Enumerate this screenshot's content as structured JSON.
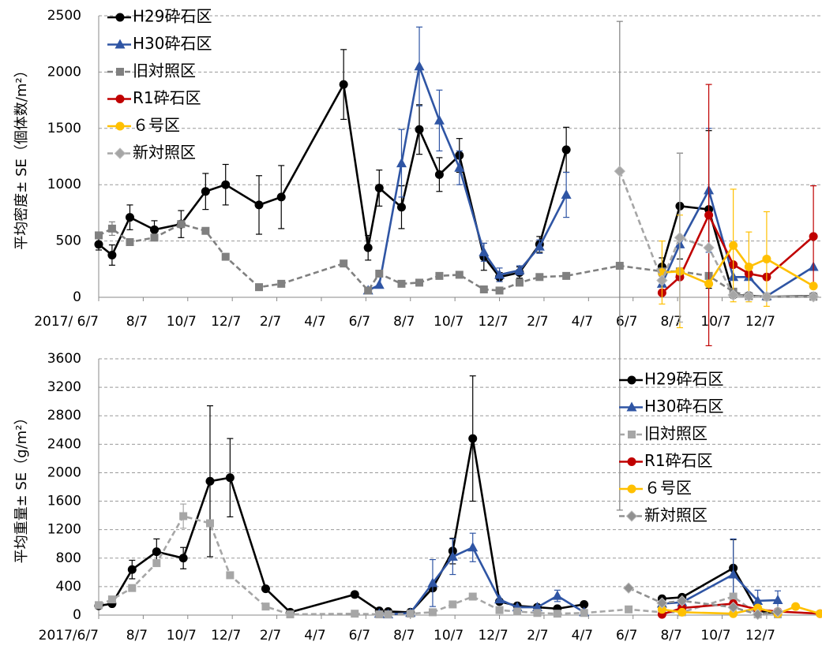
{
  "chart_data": [
    {
      "type": "line",
      "y_label": "平均密度± SE（個体数/m²）",
      "legend": "upper left",
      "grid": true,
      "ylim": [
        0,
        2500
      ],
      "yticks": [
        0,
        500,
        1000,
        1500,
        2000,
        2500
      ],
      "xlim": [
        0,
        32.45
      ],
      "xticks": [
        {
          "value": 0,
          "label": "2017/ 6/7"
        },
        {
          "value": 2,
          "label": "8/7"
        },
        {
          "value": 4,
          "label": "10/7"
        },
        {
          "value": 6,
          "label": "12/7"
        },
        {
          "value": 8,
          "label": "2/7"
        },
        {
          "value": 10,
          "label": "4/7"
        },
        {
          "value": 12,
          "label": "6/7"
        },
        {
          "value": 14,
          "label": "8/7"
        },
        {
          "value": 16,
          "label": "10/7"
        },
        {
          "value": 18,
          "label": "12/7"
        },
        {
          "value": 20,
          "label": "2/7"
        },
        {
          "value": 22,
          "label": "4/7"
        },
        {
          "value": 24,
          "label": "6/7"
        },
        {
          "value": 26,
          "label": "8/7"
        },
        {
          "value": 28,
          "label": "10/7"
        },
        {
          "value": 30,
          "label": "12/7"
        }
      ],
      "series": [
        {
          "name": "H29砕石区",
          "color": "#000000",
          "marker": "circle",
          "dash": false,
          "x": [
            0,
            0.6,
            1.4,
            2.5,
            3.7,
            4.8,
            5.7,
            7.2,
            8.2,
            11,
            12.1,
            12.6,
            13.6,
            14.4,
            15.3,
            16.2,
            17.3,
            18,
            18.9,
            19.8,
            21,
            null,
            25.3,
            26.1,
            27.4,
            28.5,
            29.2,
            30,
            32.1
          ],
          "values": [
            470,
            375,
            710,
            600,
            650,
            940,
            1000,
            820,
            890,
            1890,
            440,
            970,
            800,
            1490,
            1090,
            1260,
            360,
            180,
            220,
            470,
            1310,
            null,
            270,
            810,
            780,
            20,
            15,
            5,
            10
          ],
          "errors": [
            50,
            90,
            110,
            80,
            120,
            160,
            180,
            260,
            280,
            310,
            110,
            160,
            190,
            220,
            150,
            150,
            120,
            40,
            50,
            70,
            200,
            null,
            80,
            470,
            700,
            null,
            null,
            null,
            null
          ]
        },
        {
          "name": "H30砕石区",
          "color": "#2f55a4",
          "marker": "triangle",
          "dash": false,
          "x": [
            12.1,
            12.6,
            13.6,
            14.4,
            15.3,
            16.2,
            17.3,
            18,
            18.9,
            19.8,
            21,
            null,
            25.3,
            26.1,
            27.4,
            28.5,
            29.2,
            30,
            32.1
          ],
          "values": [
            60,
            110,
            1190,
            2050,
            1570,
            1150,
            400,
            200,
            240,
            450,
            910,
            null,
            120,
            470,
            950,
            180,
            180,
            10,
            270
          ],
          "errors": [
            null,
            null,
            300,
            350,
            270,
            150,
            80,
            60,
            40,
            60,
            200,
            null,
            null,
            null,
            550,
            null,
            null,
            null,
            null
          ]
        },
        {
          "name": "旧対照区",
          "color": "#808080",
          "marker": "square",
          "dash": true,
          "x": [
            0,
            0.6,
            1.4,
            2.5,
            3.7,
            4.8,
            5.7,
            7.2,
            8.2,
            11,
            12.1,
            12.6,
            13.6,
            14.4,
            15.3,
            16.2,
            17.3,
            18,
            18.9,
            19.8,
            21,
            23.4,
            25.3,
            26.1,
            27.4,
            28.5,
            29.2,
            30,
            32.1
          ],
          "values": [
            550,
            610,
            490,
            530,
            650,
            590,
            360,
            90,
            120,
            300,
            60,
            210,
            120,
            130,
            190,
            200,
            70,
            60,
            130,
            180,
            190,
            280,
            230,
            230,
            190,
            50,
            10,
            5,
            5
          ],
          "errors": [
            null,
            60,
            null,
            null,
            null,
            null,
            null,
            null,
            null,
            null,
            null,
            null,
            null,
            null,
            null,
            null,
            null,
            null,
            null,
            null,
            null,
            2170,
            null,
            null,
            null,
            null,
            null,
            null,
            null
          ]
        },
        {
          "name": "R1砕石区",
          "color": "#c00000",
          "marker": "circle",
          "dash": false,
          "x": [
            25.3,
            26.1,
            27.4,
            28.5,
            29.2,
            30,
            32.1
          ],
          "values": [
            40,
            180,
            730,
            290,
            210,
            180,
            540
          ],
          "errors": [
            null,
            null,
            1160,
            null,
            null,
            null,
            450
          ]
        },
        {
          "name": "６号区",
          "color": "#ffc000",
          "marker": "circle",
          "dash": false,
          "x": [
            25.3,
            26.1,
            27.4,
            28.5,
            29.2,
            30,
            32.1
          ],
          "values": [
            220,
            230,
            120,
            460,
            270,
            340,
            100
          ],
          "errors": [
            280,
            500,
            null,
            500,
            310,
            420,
            null
          ]
        },
        {
          "name": "新対照区",
          "color": "#a6a6a6",
          "marker": "diamond",
          "dash": true,
          "x": [
            23.4,
            25.3,
            26.1,
            27.4,
            28.5,
            29.2,
            30,
            32.1
          ],
          "values": [
            1120,
            150,
            530,
            440,
            20,
            10,
            5,
            5
          ],
          "errors": [
            null,
            null,
            750,
            null,
            null,
            null,
            null,
            null
          ]
        }
      ]
    },
    {
      "type": "line",
      "y_label": "平均重量± SE（g/m²）",
      "legend": "upper right",
      "grid": true,
      "ylim": [
        0,
        3600
      ],
      "yticks": [
        0,
        400,
        800,
        1200,
        1600,
        2000,
        2400,
        2800,
        3200,
        3600
      ],
      "xlim": [
        0,
        32.45
      ],
      "xticks": [
        {
          "value": 0,
          "label": "2017/6/7"
        },
        {
          "value": 2,
          "label": "8/7"
        },
        {
          "value": 4,
          "label": "10/7"
        },
        {
          "value": 6,
          "label": "12/7"
        },
        {
          "value": 8,
          "label": "2/7"
        },
        {
          "value": 10,
          "label": "4/7"
        },
        {
          "value": 12,
          "label": "6/7"
        },
        {
          "value": 14,
          "label": "8/7"
        },
        {
          "value": 16,
          "label": "10/7"
        },
        {
          "value": 18,
          "label": "12/7"
        },
        {
          "value": 20,
          "label": "2/7"
        },
        {
          "value": 22,
          "label": "4/7"
        },
        {
          "value": 24,
          "label": "6/7"
        },
        {
          "value": 26,
          "label": "8/7"
        },
        {
          "value": 28,
          "label": "10/7"
        },
        {
          "value": 30,
          "label": "12/7"
        }
      ],
      "series": [
        {
          "name": "H29砕石区",
          "color": "#000000",
          "marker": "circle",
          "dash": false,
          "x": [
            0,
            0.6,
            1.5,
            2.6,
            3.8,
            5,
            5.9,
            7.5,
            8.6,
            11.5,
            12.6,
            13,
            14,
            15,
            15.9,
            16.8,
            18,
            18.8,
            19.7,
            20.6,
            21.8,
            null,
            25.3,
            26.2,
            28.5,
            29.6,
            30.5
          ],
          "values": [
            130,
            160,
            640,
            890,
            800,
            1880,
            1930,
            370,
            40,
            290,
            60,
            50,
            40,
            380,
            900,
            2480,
            190,
            130,
            110,
            90,
            150,
            null,
            230,
            250,
            660,
            60,
            20
          ],
          "errors": [
            null,
            null,
            130,
            180,
            150,
            1060,
            550,
            null,
            null,
            null,
            null,
            null,
            null,
            null,
            180,
            880,
            null,
            null,
            null,
            null,
            null,
            null,
            null,
            null,
            400,
            null,
            null
          ]
        },
        {
          "name": "H30砕石区",
          "color": "#2f55a4",
          "marker": "triangle",
          "dash": false,
          "x": [
            12.6,
            13,
            14,
            15,
            15.9,
            16.8,
            18,
            18.8,
            19.7,
            20.6,
            21.8,
            null,
            25.3,
            26.2,
            28.5,
            29.6,
            30.5
          ],
          "values": [
            20,
            10,
            30,
            450,
            820,
            950,
            220,
            110,
            110,
            270,
            40,
            null,
            160,
            180,
            570,
            200,
            210
          ],
          "errors": [
            null,
            null,
            null,
            330,
            250,
            200,
            null,
            null,
            null,
            80,
            null,
            null,
            null,
            null,
            500,
            150,
            130
          ]
        },
        {
          "name": "旧対照区",
          "color": "#a6a6a6",
          "marker": "square",
          "dash": true,
          "x": [
            0,
            0.6,
            1.5,
            2.6,
            3.8,
            5,
            5.9,
            7.5,
            8.6,
            11.5,
            12.6,
            13,
            14,
            15,
            15.9,
            16.8,
            18,
            18.8,
            19.7,
            20.6,
            21.8,
            23.8,
            25.3,
            26.2,
            28.5,
            29.6,
            30.5
          ],
          "values": [
            140,
            220,
            380,
            730,
            1390,
            1290,
            560,
            120,
            10,
            20,
            10,
            10,
            20,
            40,
            150,
            260,
            70,
            50,
            30,
            20,
            30,
            80,
            40,
            40,
            260,
            10,
            10
          ],
          "errors": [
            null,
            null,
            null,
            null,
            170,
            null,
            null,
            null,
            null,
            null,
            null,
            null,
            null,
            null,
            null,
            null,
            null,
            null,
            null,
            null,
            null,
            null,
            null,
            null,
            null,
            null,
            null
          ]
        },
        {
          "name": "R1砕石区",
          "color": "#c00000",
          "marker": "circle",
          "dash": false,
          "x": [
            25.3,
            26.2,
            28.5,
            29.6,
            30.5,
            32.4
          ],
          "values": [
            10,
            100,
            160,
            80,
            50,
            20
          ],
          "errors": [
            null,
            null,
            null,
            null,
            null,
            null
          ]
        },
        {
          "name": "６号区",
          "color": "#ffc000",
          "marker": "circle",
          "dash": false,
          "x": [
            25.3,
            26.2,
            28.5,
            29.6,
            30.5,
            31.3,
            32.4
          ],
          "values": [
            80,
            40,
            20,
            100,
            20,
            120,
            20
          ],
          "errors": [
            null,
            null,
            null,
            null,
            null,
            null,
            null
          ]
        },
        {
          "name": "新対照区",
          "color": "#909090",
          "marker": "diamond",
          "dash": true,
          "x": [
            23.8,
            25.3,
            26.2,
            28.5,
            29.6,
            30.5
          ],
          "values": [
            380,
            170,
            200,
            110,
            10,
            50
          ],
          "errors": [
            null,
            null,
            null,
            null,
            null,
            null
          ]
        }
      ]
    }
  ]
}
